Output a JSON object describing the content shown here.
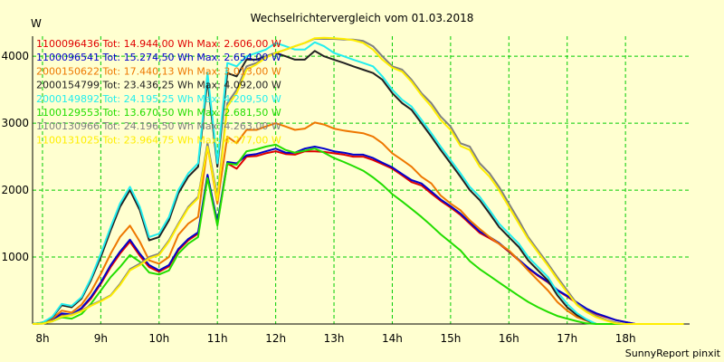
{
  "chart_data": {
    "type": "line",
    "title": "Wechselrichtervergleich vom 01.03.2018",
    "ylabel": "W",
    "footer": "SunnyReport pinxit",
    "ylim": [
      0,
      4300
    ],
    "xlim": [
      7.83,
      19.1
    ],
    "yticks": [
      1000,
      2000,
      3000,
      4000
    ],
    "xticks": [
      8,
      9,
      10,
      11,
      12,
      13,
      14,
      15,
      16,
      17,
      18
    ],
    "xtick_labels": [
      "8h",
      "9h",
      "10h",
      "11h",
      "12h",
      "13h",
      "14h",
      "15h",
      "16h",
      "17h",
      "18h"
    ],
    "grid": true,
    "legend_position": "top-left",
    "x": [
      7.83,
      8.0,
      8.17,
      8.33,
      8.5,
      8.67,
      8.83,
      9.0,
      9.17,
      9.33,
      9.5,
      9.67,
      9.83,
      10.0,
      10.17,
      10.33,
      10.5,
      10.67,
      10.83,
      11.0,
      11.17,
      11.33,
      11.5,
      11.67,
      11.83,
      12.0,
      12.17,
      12.33,
      12.5,
      12.67,
      12.83,
      13.0,
      13.17,
      13.33,
      13.5,
      13.67,
      13.83,
      14.0,
      14.17,
      14.33,
      14.5,
      14.67,
      14.83,
      15.0,
      15.17,
      15.33,
      15.5,
      15.67,
      15.83,
      16.0,
      16.17,
      16.33,
      16.5,
      16.67,
      16.83,
      17.0,
      17.17,
      17.33,
      17.5,
      17.67,
      17.83,
      18.0,
      18.17,
      18.33,
      18.5,
      18.67,
      18.83,
      19.0
    ],
    "series": [
      {
        "name": "1100096436 Tot: 14.944,00 Wh Max: 2.606,00 W",
        "color": "#e00000",
        "width": 2,
        "values": [
          0,
          10,
          60,
          150,
          130,
          230,
          380,
          600,
          850,
          1050,
          1230,
          1020,
          850,
          780,
          860,
          1100,
          1250,
          1350,
          2200,
          1500,
          2400,
          2320,
          2500,
          2510,
          2550,
          2580,
          2540,
          2530,
          2580,
          2580,
          2570,
          2550,
          2530,
          2500,
          2500,
          2450,
          2390,
          2320,
          2220,
          2120,
          2070,
          1950,
          1840,
          1740,
          1630,
          1500,
          1360,
          1280,
          1200,
          1080,
          950,
          830,
          720,
          620,
          500,
          410,
          310,
          220,
          150,
          100,
          60,
          30,
          0,
          0,
          0,
          0,
          0,
          0
        ]
      },
      {
        "name": "1100096541 Tot: 15.274,50 Wh Max: 2.654,00 W",
        "color": "#0000cc",
        "width": 2,
        "values": [
          0,
          10,
          60,
          160,
          140,
          240,
          400,
          620,
          880,
          1080,
          1260,
          1050,
          880,
          800,
          880,
          1120,
          1270,
          1370,
          2230,
          1520,
          2420,
          2400,
          2520,
          2540,
          2580,
          2620,
          2560,
          2560,
          2620,
          2650,
          2620,
          2580,
          2560,
          2530,
          2530,
          2480,
          2410,
          2340,
          2240,
          2150,
          2100,
          1980,
          1860,
          1760,
          1650,
          1520,
          1380,
          1300,
          1210,
          1090,
          960,
          840,
          730,
          630,
          510,
          420,
          320,
          230,
          160,
          110,
          60,
          30,
          0,
          0,
          0,
          0,
          0,
          0
        ]
      },
      {
        "name": "2000150622 Tot: 17.440,13 Wh Max: 3.013,00 W",
        "color": "#ee7700",
        "width": 2,
        "values": [
          0,
          15,
          80,
          200,
          170,
          290,
          480,
          750,
          1050,
          1300,
          1470,
          1230,
          950,
          900,
          1000,
          1330,
          1500,
          1600,
          2650,
          1800,
          2800,
          2700,
          2900,
          2900,
          2950,
          3000,
          2950,
          2900,
          2920,
          3010,
          2980,
          2920,
          2890,
          2870,
          2850,
          2800,
          2700,
          2550,
          2450,
          2350,
          2200,
          2100,
          1920,
          1800,
          1700,
          1550,
          1420,
          1300,
          1200,
          1100,
          950,
          800,
          650,
          500,
          330,
          200,
          100,
          50,
          0,
          0,
          0,
          0,
          0,
          0,
          0,
          0,
          0,
          0
        ]
      },
      {
        "name": "2000154799 Tot: 23.436,25 Wh Max: 4.092,00 W",
        "color": "#222222",
        "width": 2,
        "values": [
          0,
          20,
          100,
          280,
          250,
          380,
          650,
          1000,
          1400,
          1750,
          2000,
          1700,
          1250,
          1300,
          1550,
          1950,
          2200,
          2350,
          3650,
          2350,
          3750,
          3700,
          3950,
          3950,
          4000,
          4050,
          4000,
          3950,
          3950,
          4080,
          4000,
          3950,
          3900,
          3850,
          3800,
          3750,
          3650,
          3450,
          3300,
          3200,
          3000,
          2800,
          2600,
          2400,
          2200,
          2000,
          1850,
          1650,
          1450,
          1300,
          1150,
          950,
          800,
          650,
          430,
          250,
          130,
          60,
          0,
          0,
          0,
          0,
          0,
          0,
          0,
          0,
          0,
          0
        ]
      },
      {
        "name": "2000149892 Tot: 24.195,25 Wh Max: 4.209,50 W",
        "color": "#22eeee",
        "width": 2,
        "values": [
          0,
          20,
          110,
          300,
          270,
          400,
          680,
          1050,
          1450,
          1800,
          2050,
          1750,
          1300,
          1350,
          1600,
          2000,
          2250,
          2400,
          3750,
          2400,
          3900,
          3850,
          4000,
          4050,
          4100,
          4200,
          4150,
          4100,
          4100,
          4210,
          4150,
          4050,
          4000,
          3950,
          3900,
          3850,
          3700,
          3500,
          3350,
          3250,
          3050,
          2850,
          2650,
          2450,
          2250,
          2050,
          1900,
          1700,
          1500,
          1350,
          1200,
          1000,
          850,
          700,
          480,
          300,
          160,
          70,
          0,
          0,
          0,
          0,
          0,
          0,
          0,
          0,
          0,
          0
        ]
      },
      {
        "name": "1100129553 Tot: 13.670,50 Wh Max: 2.681,50 W",
        "color": "#22dd00",
        "width": 2,
        "values": [
          0,
          10,
          40,
          100,
          80,
          150,
          300,
          500,
          700,
          850,
          1030,
          930,
          770,
          740,
          800,
          1050,
          1200,
          1300,
          2180,
          1470,
          2400,
          2380,
          2580,
          2610,
          2650,
          2680,
          2600,
          2560,
          2590,
          2620,
          2560,
          2480,
          2420,
          2360,
          2290,
          2190,
          2080,
          1940,
          1830,
          1720,
          1600,
          1470,
          1340,
          1220,
          1100,
          940,
          820,
          720,
          620,
          520,
          420,
          330,
          250,
          180,
          120,
          80,
          40,
          10,
          0,
          0,
          0,
          0,
          0,
          0,
          0,
          0,
          0,
          0
        ]
      },
      {
        "name": "1100130966 Tot: 24.196,50 Wh Max: 4.263,00 W",
        "color": "#808080",
        "width": 2,
        "values": [
          0,
          5,
          40,
          120,
          140,
          200,
          280,
          350,
          430,
          600,
          820,
          900,
          1000,
          1050,
          1250,
          1500,
          1750,
          1900,
          2700,
          1900,
          3300,
          3500,
          3850,
          3900,
          4000,
          4050,
          4100,
          4150,
          4200,
          4263,
          4260,
          4260,
          4250,
          4250,
          4230,
          4150,
          4000,
          3850,
          3800,
          3650,
          3450,
          3300,
          3100,
          2950,
          2700,
          2650,
          2400,
          2250,
          2050,
          1800,
          1550,
          1300,
          1100,
          900,
          700,
          500,
          300,
          200,
          120,
          60,
          20,
          0,
          0,
          0,
          0,
          0,
          0,
          0
        ]
      },
      {
        "name": "1100131025 Tot: 23.964,75 Wh Max: 4.277,00 W",
        "color": "#ffee00",
        "width": 2,
        "values": [
          0,
          5,
          40,
          110,
          130,
          190,
          270,
          340,
          420,
          580,
          800,
          880,
          980,
          1030,
          1230,
          1480,
          1730,
          1880,
          2650,
          1850,
          3250,
          3450,
          3800,
          3880,
          3980,
          4050,
          4100,
          4150,
          4200,
          4270,
          4277,
          4270,
          4260,
          4240,
          4200,
          4100,
          3950,
          3830,
          3770,
          3620,
          3420,
          3250,
          3050,
          2900,
          2660,
          2600,
          2350,
          2200,
          2000,
          1750,
          1500,
          1270,
          1070,
          870,
          670,
          470,
          280,
          180,
          100,
          50,
          10,
          0,
          0,
          0,
          0,
          0,
          0,
          0
        ]
      }
    ]
  }
}
